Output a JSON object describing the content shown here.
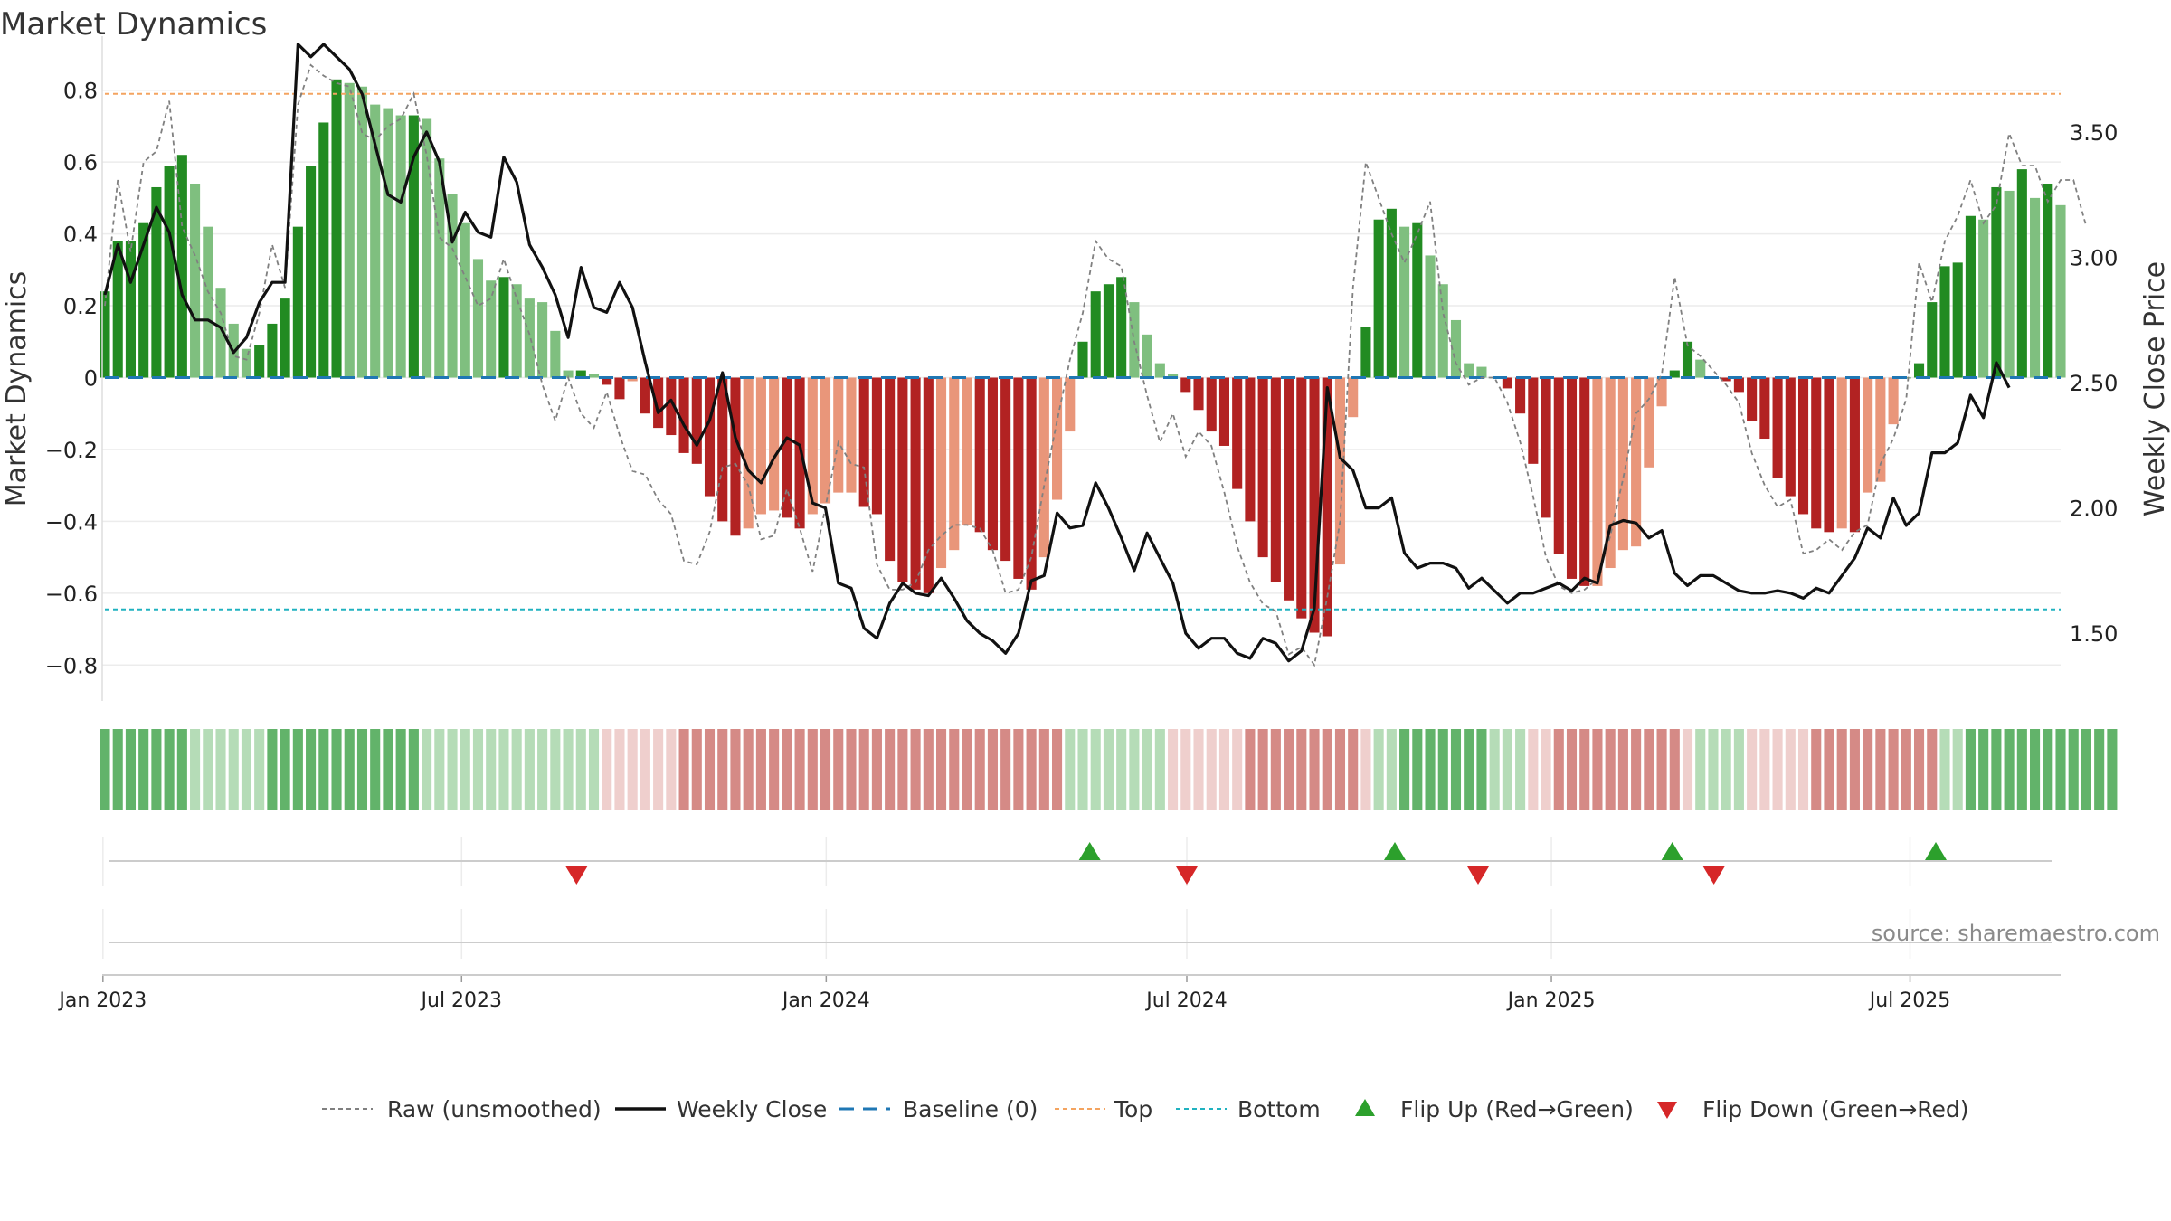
{
  "title": "Market Dynamics",
  "source": "source: sharemaestro.com",
  "colors": {
    "green_strong": "#228b22",
    "green_weak": "#7fbf7f",
    "red_strong": "#b22222",
    "red_weak": "#e9967a",
    "top_line": "#f4a460",
    "bottom_line": "#20b2c0",
    "baseline": "#1f77b4",
    "raw": "#808080",
    "close": "#111111",
    "flip_up": "#2ca02c",
    "flip_down": "#d62728"
  },
  "chart_data": {
    "type": "bar",
    "title": "Market Dynamics",
    "ylabel": "Market Dynamics",
    "y2label": "Weekly Close Price",
    "ylim": [
      -0.9,
      0.9
    ],
    "y2lim": [
      1.23,
      3.81
    ],
    "yticks": [
      -0.8,
      -0.6,
      -0.4,
      -0.2,
      0,
      0.2,
      0.4,
      0.6,
      0.8
    ],
    "ytick_labels": [
      "−0.8",
      "−0.6",
      "−0.4",
      "−0.2",
      "0",
      "0.2",
      "0.4",
      "0.6",
      "0.8"
    ],
    "y2ticks": [
      1.5,
      2.0,
      2.5,
      3.0,
      3.5
    ],
    "y2tick_labels": [
      "1.50",
      "2.00",
      "2.50",
      "3.00",
      "3.50"
    ],
    "x_start": "2023-01-02",
    "x_end": "2025-09-15",
    "xticks": [
      "2023-01-01",
      "2023-07-01",
      "2024-01-01",
      "2024-07-01",
      "2025-01-01",
      "2025-07-01"
    ],
    "xtick_labels": [
      "Jan 2023",
      "Jul 2023",
      "Jan 2024",
      "Jul 2024",
      "Jan 2025",
      "Jul 2025"
    ],
    "top_threshold": 0.79,
    "bottom_threshold": -0.645,
    "baseline": 0,
    "dynamics": [
      0.24,
      0.38,
      0.38,
      0.43,
      0.53,
      0.59,
      0.62,
      0.54,
      0.42,
      0.25,
      0.15,
      0.08,
      0.09,
      0.15,
      0.22,
      0.42,
      0.59,
      0.71,
      0.83,
      0.82,
      0.81,
      0.76,
      0.75,
      0.73,
      0.73,
      0.72,
      0.61,
      0.51,
      0.43,
      0.33,
      0.27,
      0.28,
      0.26,
      0.22,
      0.21,
      0.13,
      0.02,
      0.02,
      0.01,
      -0.02,
      -0.06,
      -0.01,
      -0.1,
      -0.14,
      -0.16,
      -0.21,
      -0.24,
      -0.33,
      -0.4,
      -0.44,
      -0.42,
      -0.38,
      -0.37,
      -0.39,
      -0.42,
      -0.38,
      -0.35,
      -0.32,
      -0.32,
      -0.36,
      -0.38,
      -0.51,
      -0.57,
      -0.59,
      -0.6,
      -0.53,
      -0.48,
      -0.41,
      -0.43,
      -0.48,
      -0.51,
      -0.56,
      -0.59,
      -0.5,
      -0.34,
      -0.15,
      0.1,
      0.24,
      0.26,
      0.28,
      0.21,
      0.12,
      0.04,
      0.01,
      -0.04,
      -0.09,
      -0.15,
      -0.19,
      -0.31,
      -0.4,
      -0.5,
      -0.57,
      -0.62,
      -0.67,
      -0.71,
      -0.72,
      -0.52,
      -0.11,
      0.14,
      0.44,
      0.47,
      0.42,
      0.43,
      0.34,
      0.26,
      0.16,
      0.04,
      0.03,
      0.0,
      -0.03,
      -0.1,
      -0.24,
      -0.39,
      -0.49,
      -0.56,
      -0.58,
      -0.58,
      -0.53,
      -0.48,
      -0.47,
      -0.25,
      -0.08,
      0.02,
      0.1,
      0.05,
      0.0,
      -0.01,
      -0.04,
      -0.12,
      -0.17,
      -0.28,
      -0.33,
      -0.38,
      -0.42,
      -0.43,
      -0.42,
      -0.43,
      -0.32,
      -0.29,
      -0.13,
      0.0,
      0.04,
      0.21,
      0.31,
      0.32,
      0.45,
      0.44,
      0.53,
      0.52,
      0.58,
      0.5,
      0.54,
      0.48
    ],
    "raw": [
      0.2,
      0.55,
      0.35,
      0.6,
      0.63,
      0.77,
      0.42,
      0.34,
      0.24,
      0.18,
      0.06,
      0.05,
      0.18,
      0.37,
      0.25,
      0.76,
      0.87,
      0.84,
      0.82,
      0.81,
      0.68,
      0.66,
      0.7,
      0.72,
      0.79,
      0.62,
      0.39,
      0.36,
      0.28,
      0.2,
      0.22,
      0.33,
      0.22,
      0.12,
      -0.02,
      -0.12,
      0.0,
      -0.1,
      -0.14,
      -0.04,
      -0.16,
      -0.26,
      -0.27,
      -0.34,
      -0.38,
      -0.51,
      -0.52,
      -0.43,
      -0.25,
      -0.24,
      -0.3,
      -0.45,
      -0.44,
      -0.31,
      -0.42,
      -0.54,
      -0.36,
      -0.18,
      -0.24,
      -0.25,
      -0.52,
      -0.59,
      -0.59,
      -0.57,
      -0.48,
      -0.44,
      -0.41,
      -0.41,
      -0.42,
      -0.48,
      -0.6,
      -0.59,
      -0.5,
      -0.3,
      -0.12,
      0.05,
      0.18,
      0.38,
      0.33,
      0.31,
      0.1,
      -0.05,
      -0.18,
      -0.1,
      -0.22,
      -0.15,
      -0.19,
      -0.32,
      -0.47,
      -0.57,
      -0.63,
      -0.65,
      -0.77,
      -0.75,
      -0.8,
      -0.61,
      -0.4,
      0.25,
      0.6,
      0.5,
      0.4,
      0.32,
      0.4,
      0.49,
      0.18,
      0.04,
      -0.02,
      0.0,
      0.0,
      -0.07,
      -0.18,
      -0.33,
      -0.5,
      -0.58,
      -0.6,
      -0.59,
      -0.56,
      -0.44,
      -0.28,
      -0.1,
      -0.06,
      0.01,
      0.28,
      0.09,
      0.06,
      0.02,
      -0.02,
      -0.07,
      -0.21,
      -0.3,
      -0.36,
      -0.34,
      -0.49,
      -0.48,
      -0.45,
      -0.48,
      -0.43,
      -0.41,
      -0.24,
      -0.17,
      -0.06,
      0.32,
      0.21,
      0.38,
      0.45,
      0.55,
      0.43,
      0.48,
      0.68,
      0.59,
      0.59,
      0.49,
      0.55,
      0.55,
      0.42
    ],
    "close": [
      2.85,
      3.05,
      2.9,
      3.05,
      3.2,
      3.1,
      2.85,
      2.75,
      2.75,
      2.72,
      2.62,
      2.68,
      2.82,
      2.9,
      2.9,
      3.85,
      3.8,
      3.85,
      3.8,
      3.75,
      3.65,
      3.45,
      3.25,
      3.22,
      3.4,
      3.5,
      3.38,
      3.06,
      3.18,
      3.1,
      3.08,
      3.4,
      3.3,
      3.05,
      2.96,
      2.85,
      2.68,
      2.96,
      2.8,
      2.78,
      2.9,
      2.8,
      2.58,
      2.38,
      2.43,
      2.33,
      2.25,
      2.35,
      2.54,
      2.28,
      2.15,
      2.1,
      2.2,
      2.28,
      2.25,
      2.02,
      2.0,
      1.7,
      1.68,
      1.52,
      1.48,
      1.62,
      1.7,
      1.66,
      1.65,
      1.72,
      1.64,
      1.55,
      1.5,
      1.47,
      1.42,
      1.5,
      1.71,
      1.73,
      1.98,
      1.92,
      1.93,
      2.1,
      2.0,
      1.88,
      1.75,
      1.9,
      1.8,
      1.7,
      1.5,
      1.44,
      1.48,
      1.48,
      1.42,
      1.4,
      1.48,
      1.46,
      1.39,
      1.43,
      1.6,
      2.48,
      2.2,
      2.15,
      2.0,
      2.0,
      2.04,
      1.82,
      1.76,
      1.78,
      1.78,
      1.76,
      1.68,
      1.72,
      1.67,
      1.62,
      1.66,
      1.66,
      1.68,
      1.7,
      1.67,
      1.72,
      1.7,
      1.93,
      1.95,
      1.94,
      1.88,
      1.91,
      1.74,
      1.69,
      1.73,
      1.73,
      1.7,
      1.67,
      1.66,
      1.66,
      1.67,
      1.66,
      1.64,
      1.68,
      1.66,
      1.73,
      1.8,
      1.92,
      1.88,
      2.04,
      1.93,
      1.98,
      2.22,
      2.22,
      2.26,
      2.45,
      2.36,
      2.58,
      2.48
    ],
    "trend_strip": [
      "G",
      "G",
      "G",
      "G",
      "G",
      "G",
      "G",
      "g",
      "g",
      "g",
      "g",
      "g",
      "g",
      "G",
      "G",
      "G",
      "G",
      "G",
      "G",
      "G",
      "G",
      "G",
      "G",
      "G",
      "G",
      "g",
      "g",
      "g",
      "g",
      "g",
      "g",
      "g",
      "g",
      "g",
      "g",
      "g",
      "g",
      "g",
      "g",
      "r",
      "r",
      "r",
      "r",
      "r",
      "r",
      "R",
      "R",
      "R",
      "R",
      "R",
      "R",
      "R",
      "R",
      "R",
      "R",
      "R",
      "R",
      "R",
      "R",
      "R",
      "R",
      "R",
      "R",
      "R",
      "R",
      "R",
      "R",
      "R",
      "R",
      "R",
      "R",
      "R",
      "R",
      "R",
      "R",
      "g",
      "g",
      "g",
      "g",
      "g",
      "g",
      "g",
      "g",
      "r",
      "r",
      "r",
      "r",
      "r",
      "r",
      "R",
      "R",
      "R",
      "R",
      "R",
      "R",
      "R",
      "R",
      "R",
      "r",
      "g",
      "g",
      "G",
      "G",
      "G",
      "G",
      "G",
      "G",
      "G",
      "g",
      "g",
      "g",
      "r",
      "r",
      "R",
      "R",
      "R",
      "R",
      "R",
      "R",
      "R",
      "R",
      "R",
      "R",
      "r",
      "g",
      "g",
      "g",
      "g",
      "r",
      "r",
      "r",
      "r",
      "r",
      "R",
      "R",
      "R",
      "R",
      "R",
      "R",
      "R",
      "R",
      "R",
      "R",
      "g",
      "g",
      "G",
      "G",
      "G",
      "G",
      "G",
      "G",
      "G",
      "G",
      "G",
      "G",
      "G",
      "G"
    ],
    "flip_up": [
      "2024-05-13",
      "2024-10-14",
      "2025-03-03",
      "2025-07-14"
    ],
    "flip_down": [
      "2023-08-28",
      "2024-07-01",
      "2024-11-25",
      "2025-03-24"
    ],
    "legend": {
      "placement": "bottom-center",
      "entries": [
        {
          "key": "raw",
          "label": "Raw (unsmoothed)"
        },
        {
          "key": "close",
          "label": "Weekly Close"
        },
        {
          "key": "baseline",
          "label": "Baseline (0)"
        },
        {
          "key": "top",
          "label": "Top"
        },
        {
          "key": "bottom",
          "label": "Bottom"
        },
        {
          "key": "flip_up",
          "label": "Flip Up (Red→Green)"
        },
        {
          "key": "flip_down",
          "label": "Flip Down (Green→Red)"
        }
      ]
    }
  }
}
